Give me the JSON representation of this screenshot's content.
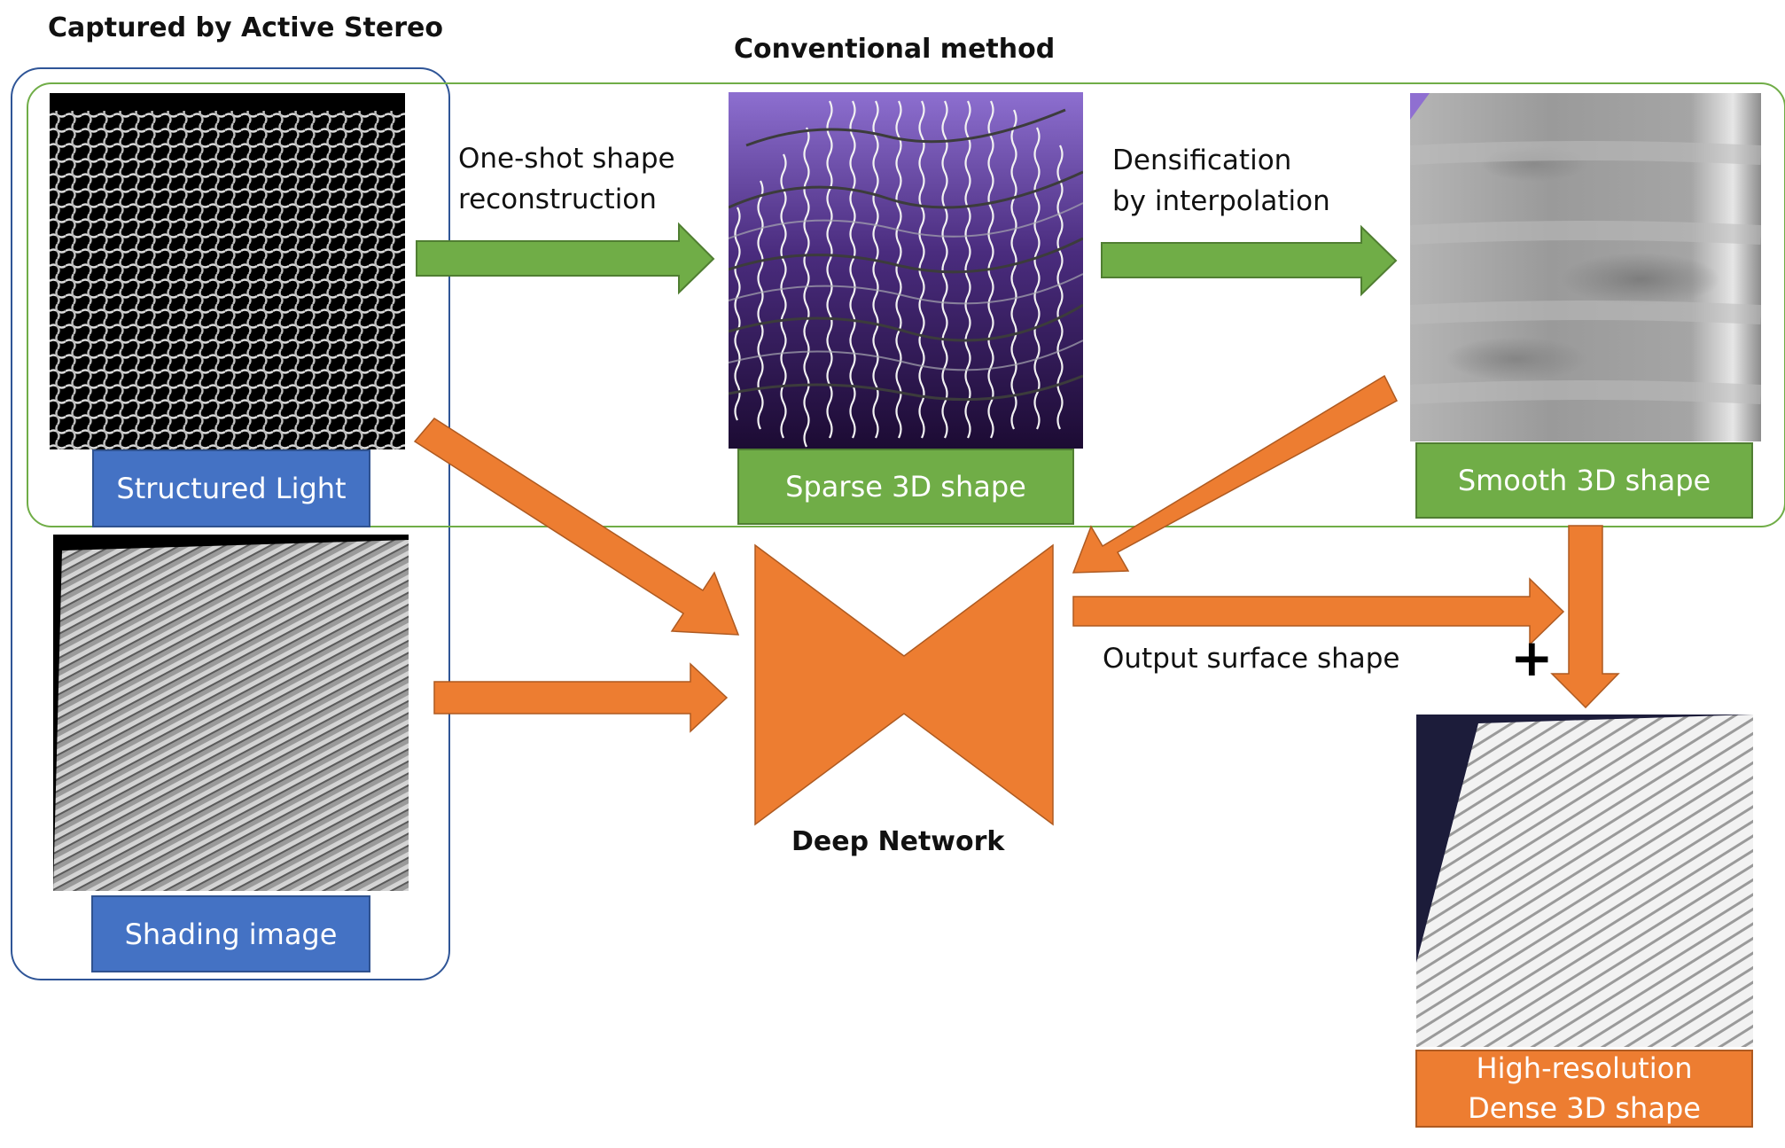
{
  "titles": {
    "captured": "Captured by Active Stereo",
    "conventional": "Conventional method",
    "deep_network": "Deep Network"
  },
  "arrow_captions": {
    "one_shot_line1": "One-shot shape",
    "one_shot_line2": "reconstruction",
    "densify_line1": "Densification",
    "densify_line2": "by interpolation",
    "output": "Output surface shape",
    "plus": "+"
  },
  "labels": {
    "structured_light": "Structured Light",
    "shading_image": "Shading image",
    "sparse_3d": "Sparse 3D shape",
    "smooth_3d": "Smooth 3D shape",
    "high_res_line1": "High-resolution",
    "high_res_line2": "Dense 3D shape"
  },
  "colors": {
    "blue": "#4472c4",
    "green": "#70ad47",
    "orange": "#ed7d31",
    "frame_blue": "#2f5597",
    "frame_green": "#70ad47"
  }
}
